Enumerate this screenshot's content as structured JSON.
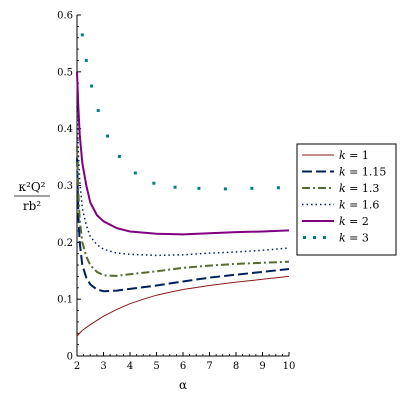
{
  "chart_data": {
    "type": "line",
    "title": "",
    "xlabel": "α",
    "ylabel": {
      "numerator": "κ²Q²",
      "denominator": "rb²"
    },
    "xlim": [
      2,
      10
    ],
    "ylim": [
      0,
      0.6
    ],
    "x_ticks": [
      "2",
      "3",
      "4",
      "5",
      "6",
      "7",
      "8",
      "9",
      "10"
    ],
    "y_ticks": [
      "0",
      "0.1",
      "0.2",
      "0.3",
      "0.4",
      "0.5",
      "0.6"
    ],
    "grid": false,
    "legend_position": "right",
    "series": [
      {
        "name": "k = 1",
        "legend_var": "k",
        "legend_val": "= 1",
        "color": "#8b1a1a",
        "style": "solid",
        "points": [
          [
            2.0,
            0.035
          ],
          [
            2.2,
            0.045
          ],
          [
            2.5,
            0.055
          ],
          [
            3.0,
            0.07
          ],
          [
            3.5,
            0.082
          ],
          [
            4.0,
            0.092
          ],
          [
            4.5,
            0.1
          ],
          [
            5.0,
            0.107
          ],
          [
            5.5,
            0.112
          ],
          [
            6.0,
            0.117
          ],
          [
            7.0,
            0.124
          ],
          [
            8.0,
            0.13
          ],
          [
            9.0,
            0.135
          ],
          [
            10.0,
            0.14
          ]
        ]
      },
      {
        "name": "k = 1.15",
        "legend_var": "k",
        "legend_val": "= 1.15",
        "color": "#00205b",
        "style": "longdash",
        "points": [
          [
            2.0,
            0.35
          ],
          [
            2.05,
            0.25
          ],
          [
            2.1,
            0.2
          ],
          [
            2.2,
            0.16
          ],
          [
            2.35,
            0.138
          ],
          [
            2.5,
            0.126
          ],
          [
            2.75,
            0.117
          ],
          [
            3.0,
            0.114
          ],
          [
            3.5,
            0.115
          ],
          [
            4.0,
            0.118
          ],
          [
            5.0,
            0.124
          ],
          [
            6.0,
            0.131
          ],
          [
            7.0,
            0.138
          ],
          [
            8.0,
            0.143
          ],
          [
            9.0,
            0.148
          ],
          [
            10.0,
            0.153
          ]
        ]
      },
      {
        "name": "k = 1.3",
        "legend_var": "k",
        "legend_val": "= 1.3",
        "color": "#556b2f",
        "style": "dashdot",
        "points": [
          [
            2.0,
            0.37
          ],
          [
            2.05,
            0.29
          ],
          [
            2.1,
            0.24
          ],
          [
            2.2,
            0.2
          ],
          [
            2.35,
            0.175
          ],
          [
            2.5,
            0.16
          ],
          [
            2.75,
            0.148
          ],
          [
            3.0,
            0.142
          ],
          [
            3.5,
            0.141
          ],
          [
            4.0,
            0.144
          ],
          [
            5.0,
            0.149
          ],
          [
            6.0,
            0.155
          ],
          [
            7.0,
            0.159
          ],
          [
            8.0,
            0.162
          ],
          [
            9.0,
            0.164
          ],
          [
            10.0,
            0.166
          ]
        ]
      },
      {
        "name": "k = 1.6",
        "legend_var": "k",
        "legend_val": "= 1.6",
        "color": "#00205b",
        "style": "dotted",
        "points": [
          [
            2.0,
            0.44
          ],
          [
            2.05,
            0.36
          ],
          [
            2.1,
            0.31
          ],
          [
            2.2,
            0.26
          ],
          [
            2.35,
            0.23
          ],
          [
            2.5,
            0.21
          ],
          [
            2.75,
            0.196
          ],
          [
            3.0,
            0.188
          ],
          [
            3.5,
            0.181
          ],
          [
            4.0,
            0.179
          ],
          [
            5.0,
            0.177
          ],
          [
            6.0,
            0.178
          ],
          [
            7.0,
            0.181
          ],
          [
            8.0,
            0.183
          ],
          [
            9.0,
            0.186
          ],
          [
            10.0,
            0.19
          ]
        ]
      },
      {
        "name": "k = 2",
        "legend_var": "k",
        "legend_val": "= 2",
        "color": "#800080",
        "style": "solid-thick",
        "points": [
          [
            2.0,
            0.5
          ],
          [
            2.05,
            0.44
          ],
          [
            2.1,
            0.39
          ],
          [
            2.2,
            0.34
          ],
          [
            2.35,
            0.3
          ],
          [
            2.5,
            0.27
          ],
          [
            2.75,
            0.248
          ],
          [
            3.0,
            0.237
          ],
          [
            3.5,
            0.225
          ],
          [
            4.0,
            0.219
          ],
          [
            5.0,
            0.215
          ],
          [
            6.0,
            0.214
          ],
          [
            7.0,
            0.216
          ],
          [
            8.0,
            0.218
          ],
          [
            9.0,
            0.219
          ],
          [
            10.0,
            0.221
          ]
        ]
      },
      {
        "name": "k = 3",
        "legend_var": "k",
        "legend_val": "= 3",
        "color": "#008080",
        "style": "points",
        "points": [
          [
            2.2,
            0.565
          ],
          [
            2.35,
            0.52
          ],
          [
            2.55,
            0.475
          ],
          [
            2.8,
            0.432
          ],
          [
            3.15,
            0.387
          ],
          [
            3.6,
            0.351
          ],
          [
            4.2,
            0.322
          ],
          [
            4.9,
            0.304
          ],
          [
            5.7,
            0.297
          ],
          [
            6.6,
            0.295
          ],
          [
            7.6,
            0.294
          ],
          [
            8.6,
            0.295
          ],
          [
            9.6,
            0.296
          ]
        ]
      }
    ]
  }
}
